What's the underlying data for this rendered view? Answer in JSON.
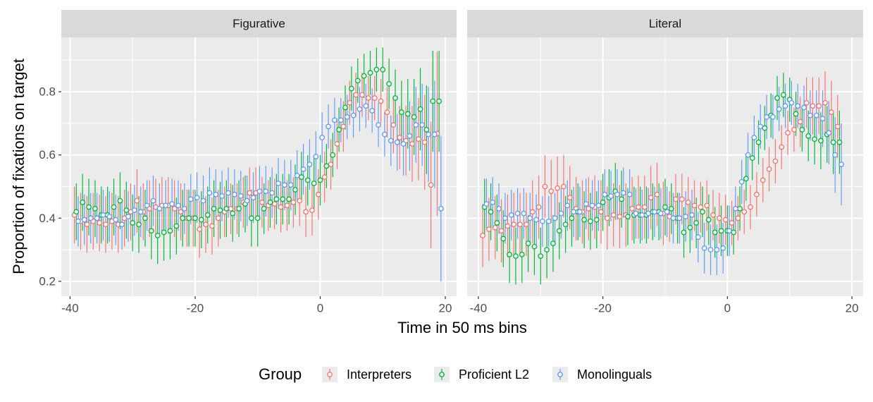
{
  "chart_data": [
    {
      "type": "errorbar-point",
      "title": "Figurative",
      "y_label": "Proportion of fixations on target",
      "x_label": "Time in 50 ms bins",
      "legend_title": "Group",
      "x": [
        -39,
        -38,
        -37,
        -36,
        -35,
        -34,
        -33,
        -32,
        -31,
        -30,
        -29,
        -28,
        -27,
        -26,
        -25,
        -24,
        -23,
        -22,
        -21,
        -20,
        -19,
        -18,
        -17,
        -16,
        -15,
        -14,
        -13,
        -12,
        -11,
        -10,
        -9,
        -8,
        -7,
        -6,
        -5,
        -4,
        -3,
        -2,
        -1,
        0,
        1,
        2,
        3,
        4,
        5,
        6,
        7,
        8,
        9,
        10,
        11,
        12,
        13,
        14,
        15,
        16,
        17,
        18,
        19
      ],
      "xlim": [
        -41.4,
        21.8
      ],
      "xticks": [
        -40,
        -20,
        0,
        20
      ],
      "xminor": [
        -30,
        -10,
        10
      ],
      "ylim": [
        0.153,
        0.972
      ],
      "yticks": [
        0.2,
        0.4,
        0.6,
        0.8
      ],
      "yminor": [
        0.3,
        0.5,
        0.7,
        0.9
      ],
      "series": [
        {
          "name": "Interpreters",
          "color": "#F8766D",
          "values": [
            0.41,
            0.39,
            0.38,
            0.39,
            0.385,
            0.38,
            0.39,
            0.38,
            0.4,
            0.42,
            0.455,
            0.42,
            0.43,
            0.435,
            0.44,
            0.44,
            0.43,
            0.42,
            0.4,
            0.4,
            0.365,
            0.38,
            0.375,
            0.4,
            0.42,
            0.43,
            0.43,
            0.45,
            0.48,
            0.48,
            0.45,
            0.44,
            0.445,
            0.435,
            0.44,
            0.45,
            0.455,
            0.42,
            0.425,
            0.475,
            0.53,
            0.57,
            0.635,
            0.69,
            0.765,
            0.79,
            0.79,
            0.78,
            0.78,
            0.77,
            0.735,
            0.695,
            0.655,
            0.645,
            0.635,
            0.65,
            0.64,
            0.505,
            0.667
          ],
          "errors": [
            0.09,
            0.09,
            0.09,
            0.09,
            0.09,
            0.09,
            0.09,
            0.09,
            0.09,
            0.09,
            0.1,
            0.09,
            0.09,
            0.09,
            0.09,
            0.09,
            0.09,
            0.09,
            0.09,
            0.09,
            0.09,
            0.09,
            0.09,
            0.09,
            0.08,
            0.08,
            0.08,
            0.08,
            0.08,
            0.08,
            0.08,
            0.08,
            0.08,
            0.08,
            0.08,
            0.08,
            0.08,
            0.08,
            0.08,
            0.08,
            0.08,
            0.08,
            0.08,
            0.08,
            0.07,
            0.07,
            0.07,
            0.07,
            0.07,
            0.07,
            0.08,
            0.09,
            0.1,
            0.11,
            0.12,
            0.13,
            0.15,
            0.2,
            0.26
          ]
        },
        {
          "name": "Proficient L2",
          "color": "#00BA38",
          "values": [
            0.42,
            0.45,
            0.435,
            0.43,
            0.41,
            0.41,
            0.435,
            0.455,
            0.425,
            0.385,
            0.38,
            0.4,
            0.36,
            0.345,
            0.355,
            0.36,
            0.375,
            0.4,
            0.4,
            0.4,
            0.395,
            0.41,
            0.43,
            0.425,
            0.43,
            0.415,
            0.43,
            0.445,
            0.4,
            0.4,
            0.43,
            0.45,
            0.46,
            0.46,
            0.46,
            0.49,
            0.53,
            0.52,
            0.51,
            0.52,
            0.565,
            0.6,
            0.68,
            0.75,
            0.81,
            0.835,
            0.85,
            0.86,
            0.87,
            0.87,
            0.825,
            0.78,
            0.735,
            0.73,
            0.72,
            0.745,
            0.68,
            0.77,
            0.77
          ],
          "errors": [
            0.09,
            0.09,
            0.09,
            0.09,
            0.09,
            0.09,
            0.09,
            0.09,
            0.09,
            0.09,
            0.09,
            0.09,
            0.09,
            0.09,
            0.09,
            0.09,
            0.09,
            0.09,
            0.09,
            0.09,
            0.09,
            0.09,
            0.09,
            0.09,
            0.09,
            0.09,
            0.09,
            0.09,
            0.09,
            0.09,
            0.08,
            0.08,
            0.08,
            0.08,
            0.08,
            0.08,
            0.08,
            0.08,
            0.08,
            0.08,
            0.07,
            0.07,
            0.07,
            0.07,
            0.07,
            0.07,
            0.07,
            0.07,
            0.07,
            0.07,
            0.08,
            0.09,
            0.1,
            0.11,
            0.12,
            0.13,
            0.14,
            0.16,
            0.16
          ]
        },
        {
          "name": "Monolinguals",
          "color": "#619CFF",
          "values": [
            0.39,
            0.395,
            0.4,
            0.4,
            0.41,
            0.405,
            0.395,
            0.38,
            0.405,
            0.425,
            0.42,
            0.44,
            0.455,
            0.43,
            0.44,
            0.445,
            0.44,
            0.43,
            0.46,
            0.465,
            0.455,
            0.48,
            0.475,
            0.47,
            0.48,
            0.475,
            0.47,
            0.455,
            0.465,
            0.485,
            0.485,
            0.48,
            0.51,
            0.505,
            0.505,
            0.535,
            0.555,
            0.57,
            0.595,
            0.655,
            0.69,
            0.71,
            0.71,
            0.72,
            0.725,
            0.745,
            0.755,
            0.74,
            0.695,
            0.665,
            0.645,
            0.64,
            0.635,
            0.66,
            0.695,
            0.695,
            0.665,
            0.665,
            0.43
          ],
          "errors": [
            0.08,
            0.08,
            0.08,
            0.08,
            0.08,
            0.08,
            0.08,
            0.08,
            0.08,
            0.08,
            0.08,
            0.08,
            0.08,
            0.08,
            0.08,
            0.08,
            0.08,
            0.08,
            0.08,
            0.08,
            0.08,
            0.08,
            0.08,
            0.08,
            0.08,
            0.08,
            0.08,
            0.08,
            0.08,
            0.08,
            0.08,
            0.08,
            0.08,
            0.08,
            0.08,
            0.08,
            0.08,
            0.08,
            0.08,
            0.08,
            0.07,
            0.07,
            0.07,
            0.07,
            0.07,
            0.07,
            0.07,
            0.07,
            0.07,
            0.07,
            0.08,
            0.09,
            0.1,
            0.11,
            0.12,
            0.13,
            0.15,
            0.17,
            0.23
          ]
        }
      ]
    },
    {
      "type": "errorbar-point",
      "title": "Literal",
      "x": [
        -39,
        -38,
        -37,
        -36,
        -35,
        -34,
        -33,
        -32,
        -31,
        -30,
        -29,
        -28,
        -27,
        -26,
        -25,
        -24,
        -23,
        -22,
        -21,
        -20,
        -19,
        -18,
        -17,
        -16,
        -15,
        -14,
        -13,
        -12,
        -11,
        -10,
        -9,
        -8,
        -7,
        -6,
        -5,
        -4,
        -3,
        -2,
        -1,
        0,
        1,
        2,
        3,
        4,
        5,
        6,
        7,
        8,
        9,
        10,
        11,
        12,
        13,
        14,
        15,
        16,
        17,
        18
      ],
      "xlim": [
        -41.8,
        21.8
      ],
      "xticks": [
        -40,
        -20,
        0,
        20
      ],
      "xminor": [
        -30,
        -10,
        10
      ],
      "ylim": [
        0.153,
        0.972
      ],
      "yticks": [
        0.2,
        0.4,
        0.6,
        0.8
      ],
      "yminor": [
        0.3,
        0.5,
        0.7,
        0.9
      ],
      "series": [
        {
          "name": "Interpreters",
          "color": "#F8766D",
          "values": [
            0.345,
            0.365,
            0.37,
            0.36,
            0.375,
            0.38,
            0.38,
            0.38,
            0.42,
            0.435,
            0.5,
            0.485,
            0.495,
            0.5,
            0.465,
            0.43,
            0.42,
            0.43,
            0.435,
            0.42,
            0.4,
            0.41,
            0.405,
            0.41,
            0.43,
            0.435,
            0.435,
            0.465,
            0.475,
            0.415,
            0.405,
            0.46,
            0.46,
            0.45,
            0.44,
            0.435,
            0.44,
            0.41,
            0.4,
            0.395,
            0.385,
            0.4,
            0.42,
            0.435,
            0.475,
            0.52,
            0.555,
            0.58,
            0.625,
            0.67,
            0.68,
            0.705,
            0.765,
            0.755,
            0.755,
            0.765,
            0.735,
            0.69
          ],
          "errors": [
            0.1,
            0.1,
            0.1,
            0.1,
            0.1,
            0.1,
            0.1,
            0.1,
            0.1,
            0.1,
            0.1,
            0.1,
            0.1,
            0.1,
            0.1,
            0.1,
            0.1,
            0.1,
            0.1,
            0.1,
            0.1,
            0.1,
            0.1,
            0.1,
            0.1,
            0.1,
            0.1,
            0.1,
            0.1,
            0.1,
            0.08,
            0.08,
            0.08,
            0.08,
            0.08,
            0.08,
            0.08,
            0.08,
            0.08,
            0.08,
            0.07,
            0.07,
            0.07,
            0.07,
            0.07,
            0.07,
            0.07,
            0.07,
            0.07,
            0.07,
            0.07,
            0.08,
            0.08,
            0.09,
            0.09,
            0.1,
            0.1,
            0.1
          ]
        },
        {
          "name": "Proficient L2",
          "color": "#00BA38",
          "values": [
            0.435,
            0.42,
            0.385,
            0.335,
            0.285,
            0.28,
            0.285,
            0.32,
            0.31,
            0.28,
            0.3,
            0.32,
            0.36,
            0.38,
            0.4,
            0.42,
            0.395,
            0.39,
            0.395,
            0.45,
            0.465,
            0.485,
            0.46,
            0.405,
            0.41,
            0.41,
            0.41,
            0.42,
            0.42,
            0.435,
            0.43,
            0.4,
            0.355,
            0.37,
            0.385,
            0.42,
            0.395,
            0.355,
            0.36,
            0.36,
            0.355,
            0.43,
            0.525,
            0.59,
            0.64,
            0.685,
            0.725,
            0.78,
            0.79,
            0.775,
            0.73,
            0.68,
            0.66,
            0.65,
            0.645,
            0.665,
            0.64,
            0.64
          ],
          "errors": [
            0.09,
            0.09,
            0.09,
            0.09,
            0.09,
            0.09,
            0.09,
            0.09,
            0.09,
            0.09,
            0.09,
            0.09,
            0.09,
            0.09,
            0.09,
            0.09,
            0.09,
            0.09,
            0.09,
            0.09,
            0.09,
            0.09,
            0.09,
            0.09,
            0.09,
            0.09,
            0.09,
            0.09,
            0.09,
            0.09,
            0.08,
            0.08,
            0.08,
            0.08,
            0.08,
            0.08,
            0.08,
            0.08,
            0.08,
            0.08,
            0.07,
            0.07,
            0.07,
            0.07,
            0.07,
            0.07,
            0.07,
            0.07,
            0.07,
            0.07,
            0.07,
            0.07,
            0.08,
            0.08,
            0.09,
            0.09,
            0.1,
            0.1
          ]
        },
        {
          "name": "Monolinguals",
          "color": "#619CFF",
          "values": [
            0.445,
            0.45,
            0.43,
            0.4,
            0.41,
            0.415,
            0.415,
            0.4,
            0.395,
            0.39,
            0.39,
            0.4,
            0.415,
            0.44,
            0.42,
            0.42,
            0.445,
            0.44,
            0.44,
            0.475,
            0.47,
            0.475,
            0.48,
            0.475,
            0.415,
            0.41,
            0.415,
            0.42,
            0.415,
            0.42,
            0.4,
            0.4,
            0.405,
            0.41,
            0.34,
            0.305,
            0.3,
            0.3,
            0.305,
            0.36,
            0.43,
            0.515,
            0.6,
            0.655,
            0.69,
            0.72,
            0.72,
            0.745,
            0.755,
            0.765,
            0.755,
            0.75,
            0.725,
            0.725,
            0.715,
            0.67,
            0.6,
            0.57
          ],
          "errors": [
            0.08,
            0.08,
            0.08,
            0.08,
            0.08,
            0.08,
            0.08,
            0.08,
            0.08,
            0.08,
            0.08,
            0.08,
            0.08,
            0.08,
            0.08,
            0.08,
            0.08,
            0.08,
            0.08,
            0.08,
            0.08,
            0.08,
            0.08,
            0.08,
            0.08,
            0.08,
            0.08,
            0.08,
            0.08,
            0.08,
            0.08,
            0.08,
            0.08,
            0.08,
            0.08,
            0.08,
            0.08,
            0.08,
            0.08,
            0.08,
            0.07,
            0.07,
            0.07,
            0.07,
            0.07,
            0.07,
            0.07,
            0.07,
            0.07,
            0.07,
            0.07,
            0.07,
            0.08,
            0.08,
            0.09,
            0.1,
            0.12,
            0.13
          ]
        }
      ]
    }
  ]
}
